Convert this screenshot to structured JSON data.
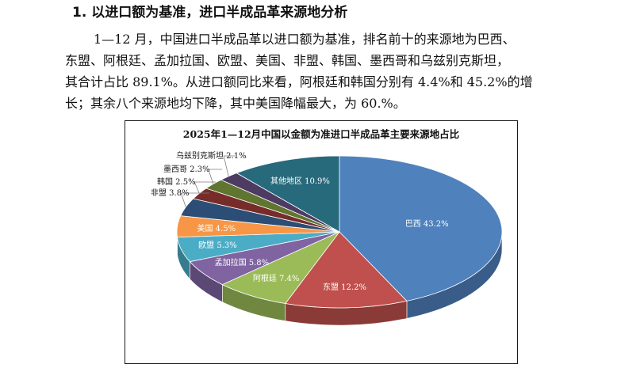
{
  "heading": "1. 以进口额为基准，进口半成品革来源地分析",
  "paragraph_lines": [
    "1—12 月，中国进口半成品革以进口额为基准，排名前十的来源地为巴西、",
    "东盟、阿根廷、孟加拉国、欧盟、美国、非盟、韩国、墨西哥和乌兹别克斯坦，",
    "其合计占比 89.1%。从进口额同比来看，阿根廷和韩国分别有 4.4%和 45.2%的增",
    "长；其余八个来源地均下降，其中美国降幅最大，为 60.%。"
  ],
  "chart_data": {
    "type": "pie",
    "title": "2025年1—12月中国以金额为准进口半成品革主要来源地占比",
    "style": "3d-pie",
    "categories": [
      "巴西",
      "东盟",
      "阿根廷",
      "孟加拉国",
      "欧盟",
      "美国",
      "非盟",
      "韩国",
      "墨西哥",
      "乌兹别克斯坦",
      "其他地区"
    ],
    "values": [
      43.2,
      12.2,
      7.4,
      5.8,
      5.3,
      4.5,
      3.8,
      2.5,
      2.3,
      2.1,
      10.9
    ],
    "labels": [
      "巴西 43.2%",
      "东盟 12.2%",
      "阿根廷 7.4%",
      "孟加拉国 5.8%",
      "欧盟 5.3%",
      "美国 4.5%",
      "非盟 3.8%",
      "韩国 2.5%",
      "墨西哥 2.3%",
      "乌兹别克斯坦 2.1%",
      "其他地区 10.9%"
    ],
    "colors": [
      "#4f81bd",
      "#c0504d",
      "#9bbb59",
      "#8064a2",
      "#4bacc6",
      "#f79646",
      "#2c4d75",
      "#772c2a",
      "#5f7530",
      "#4d3b62",
      "#276a7c"
    ],
    "legend": "none"
  }
}
